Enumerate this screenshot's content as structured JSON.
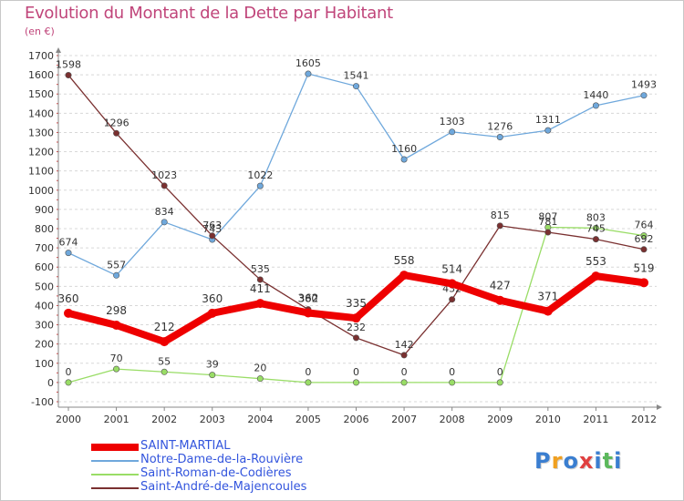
{
  "chart_data": {
    "type": "line",
    "title": "Evolution du Montant de la Dette par Habitant",
    "subtitle": "(en €)",
    "xlabel": "",
    "ylabel": "",
    "ylim": [
      -100,
      1700
    ],
    "yticks": [
      -100,
      0,
      100,
      200,
      300,
      400,
      500,
      600,
      700,
      800,
      900,
      1000,
      1100,
      1200,
      1300,
      1400,
      1500,
      1600,
      1700
    ],
    "categories": [
      "2000",
      "2001",
      "2002",
      "2003",
      "2004",
      "2005",
      "2006",
      "2007",
      "2008",
      "2009",
      "2010",
      "2011",
      "2012"
    ],
    "grid": "horizontal-dashed",
    "legend_position": "bottom-left",
    "series": [
      {
        "name": "SAINT-MARTIAL",
        "color": "#ee0000",
        "emphasis": true,
        "values": [
          360,
          298,
          212,
          360,
          411,
          362,
          335,
          558,
          514,
          427,
          371,
          553,
          519
        ]
      },
      {
        "name": "Notre-Dame-de-la-Rouvière",
        "color": "#6fa8dc",
        "values": [
          674,
          557,
          834,
          743,
          1022,
          1605,
          1541,
          1160,
          1303,
          1276,
          1311,
          1440,
          1493
        ]
      },
      {
        "name": "Saint-Roman-de-Codières",
        "color": "#99dd66",
        "values": [
          0,
          70,
          55,
          39,
          20,
          0,
          0,
          0,
          0,
          0,
          807,
          803,
          764
        ]
      },
      {
        "name": "Saint-André-de-Majencoules",
        "color": "#7a3030",
        "values": [
          1598,
          1296,
          1023,
          763,
          535,
          380,
          232,
          142,
          432,
          815,
          781,
          745,
          692
        ]
      }
    ]
  },
  "logo": {
    "letters": [
      {
        "char": "P",
        "color": "#3a7ed0"
      },
      {
        "char": "r",
        "color": "#f0a020"
      },
      {
        "char": "o",
        "color": "#3a7ed0"
      },
      {
        "char": "x",
        "color": "#e04040"
      },
      {
        "char": "i",
        "color": "#3a7ed0"
      },
      {
        "char": "t",
        "color": "#5cb85c"
      },
      {
        "char": "i",
        "color": "#3a7ed0"
      }
    ]
  }
}
